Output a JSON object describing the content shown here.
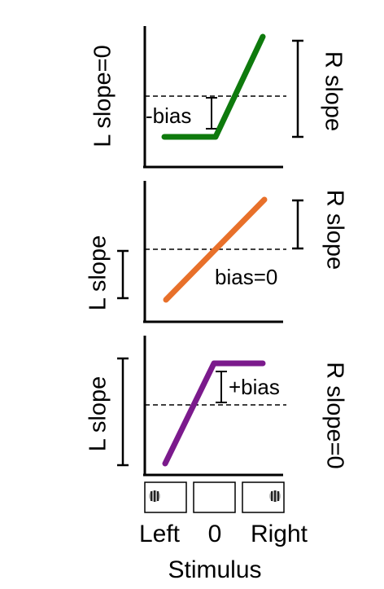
{
  "panels": [
    {
      "left_label": "L slope=0",
      "right_label": "R slope",
      "bias_label": "-bias",
      "color": "#0e7a0d",
      "shape": "flat-then-rise"
    },
    {
      "left_label": "L slope",
      "right_label": "R slope",
      "bias_label": "bias=0",
      "color": "#e8702a",
      "shape": "linear"
    },
    {
      "left_label": "L slope",
      "right_label": "R slope=0",
      "bias_label": "+bias",
      "color": "#7b1a8c",
      "shape": "rise-then-flat"
    }
  ],
  "stimuli": [
    {
      "name": "left-stimulus",
      "grating": "left"
    },
    {
      "name": "zero-stimulus",
      "grating": "none"
    },
    {
      "name": "right-stimulus",
      "grating": "right"
    }
  ],
  "x_ticks": [
    "Left",
    "0",
    "Right"
  ],
  "x_axis_label": "Stimulus"
}
